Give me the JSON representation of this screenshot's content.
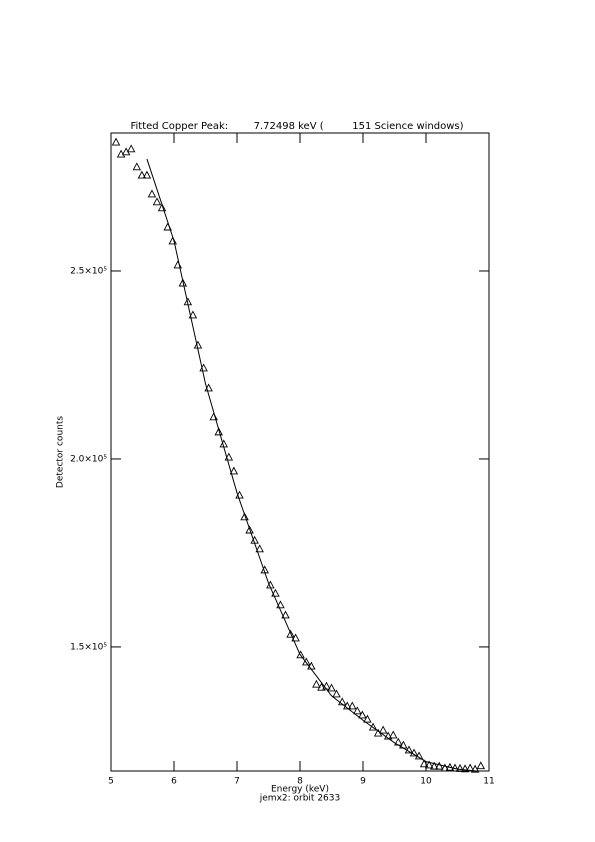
{
  "chart_data": {
    "type": "scatter",
    "title": "Fitted Copper Peak:        7.72498 keV (         151 Science windows)",
    "x_label": "Energy (keV)",
    "subtitle": "jemx2: orbit 2633",
    "y_label": "Detector counts",
    "xlim": [
      5,
      11
    ],
    "xticks": [
      5,
      6,
      7,
      8,
      9,
      10,
      11
    ],
    "ylim": [
      117000,
      286700
    ],
    "yticks": [
      {
        "value": 150000,
        "label": "1.5×10⁵"
      },
      {
        "value": 200000,
        "label": "2.0×10⁵"
      },
      {
        "value": 250000,
        "label": "2.5×10⁵"
      }
    ],
    "series": [
      {
        "color": "#000000",
        "marker": "triangle",
        "x": [
          5.08,
          5.16,
          5.24,
          5.32,
          5.41,
          5.49,
          5.57,
          5.65,
          5.73,
          5.81,
          5.9,
          5.98,
          6.06,
          6.14,
          6.22,
          6.3,
          6.38,
          6.47,
          6.55,
          6.63,
          6.71,
          6.79,
          6.87,
          6.95,
          7.04,
          7.12,
          7.2,
          7.28,
          7.36,
          7.44,
          7.53,
          7.61,
          7.69,
          7.77,
          7.85,
          7.93,
          8.01,
          8.1,
          8.18,
          8.26,
          8.34,
          8.42,
          8.5,
          8.58,
          8.67,
          8.75,
          8.83,
          8.91,
          8.99,
          9.07,
          9.16,
          9.24,
          9.32,
          9.4,
          9.48,
          9.56,
          9.64,
          9.73,
          9.81,
          9.89,
          9.97,
          10.05,
          10.13,
          10.21,
          10.3,
          10.38,
          10.46,
          10.54,
          10.62,
          10.7,
          10.78,
          10.87
        ],
        "values": [
          284300,
          281100,
          281700,
          282500,
          277700,
          275500,
          275500,
          270500,
          268400,
          266800,
          261700,
          258000,
          251600,
          246800,
          241800,
          238300,
          230300,
          224200,
          218900,
          211200,
          207200,
          204000,
          200500,
          196800,
          190400,
          184600,
          181100,
          178400,
          176100,
          170500,
          166500,
          164300,
          161200,
          158500,
          153400,
          152400,
          147900,
          146000,
          144900,
          140100,
          139300,
          139600,
          139100,
          137500,
          135400,
          134300,
          134300,
          133000,
          131900,
          130800,
          128700,
          127100,
          127900,
          126300,
          126600,
          124700,
          123900,
          122600,
          121800,
          121000,
          118900,
          118600,
          118300,
          118300,
          117800,
          118000,
          117800,
          117700,
          117600,
          117800,
          117500,
          118400
        ]
      },
      {
        "color": "#000000",
        "marker": "line",
        "x": [
          5.57,
          6.0,
          6.5,
          7.0,
          7.5,
          8.0,
          8.5,
          9.0,
          9.5,
          10.0,
          10.5,
          10.8
        ],
        "values": [
          279800,
          258000,
          220000,
          191000,
          167000,
          148000,
          137000,
          130500,
          124500,
          119500,
          117500,
          117000
        ]
      }
    ]
  }
}
